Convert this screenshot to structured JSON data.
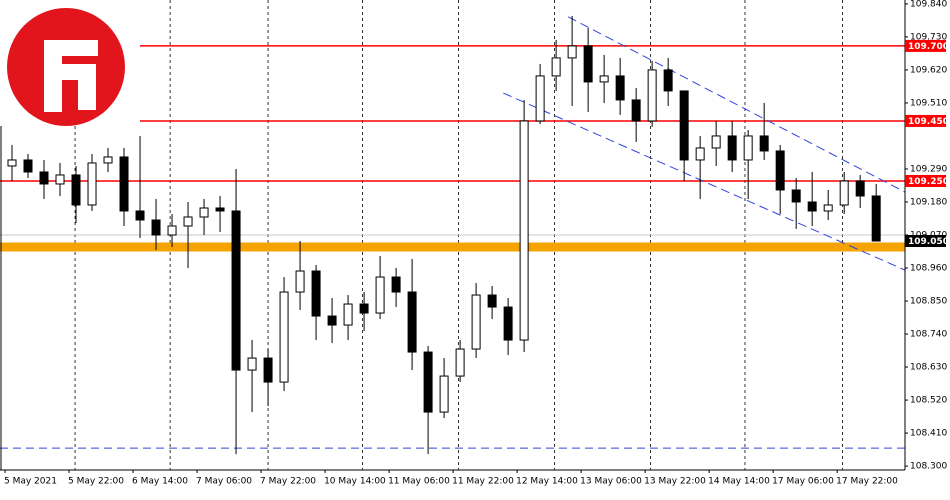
{
  "chart_data": {
    "type": "candlestick",
    "categories": [
      "5 May 2021",
      null,
      null,
      null,
      "5 May 22:00",
      null,
      null,
      null,
      "6 May 14:00",
      null,
      null,
      null,
      "7 May 06:00",
      null,
      null,
      null,
      "7 May 22:00",
      null,
      null,
      null,
      "10 May 14:00",
      null,
      null,
      null,
      "11 May 06:00",
      null,
      null,
      null,
      "11 May 22:00",
      null,
      null,
      null,
      "12 May 14:00",
      null,
      null,
      null,
      "13 May 06:00",
      null,
      null,
      null,
      "13 May 22:00",
      null,
      null,
      null,
      "14 May 14:00",
      null,
      null,
      null,
      "17 May 06:00",
      null,
      null,
      null,
      "17 May 22:00",
      null,
      null
    ],
    "open": [
      109.3,
      109.32,
      109.28,
      109.24,
      109.27,
      109.17,
      109.31,
      109.33,
      109.15,
      109.12,
      109.07,
      109.1,
      109.13,
      109.16,
      109.15,
      108.62,
      108.66,
      108.58,
      108.88,
      108.95,
      108.8,
      108.77,
      108.84,
      108.81,
      108.93,
      108.88,
      108.68,
      108.48,
      108.6,
      108.69,
      108.87,
      108.83,
      108.72,
      109.45,
      109.6,
      109.66,
      109.7,
      109.58,
      109.6,
      109.52,
      109.45,
      109.62,
      109.55,
      109.32,
      109.36,
      109.4,
      109.32,
      109.4,
      109.35,
      109.22,
      109.18,
      109.15,
      109.17,
      109.25,
      109.2
    ],
    "high": [
      109.37,
      109.34,
      109.32,
      109.31,
      109.3,
      109.34,
      109.36,
      109.36,
      109.4,
      109.19,
      109.14,
      109.18,
      109.19,
      109.2,
      109.29,
      108.72,
      108.69,
      108.93,
      109.05,
      108.97,
      108.86,
      108.87,
      108.88,
      109.0,
      108.96,
      108.99,
      108.7,
      108.66,
      108.72,
      108.91,
      108.9,
      108.86,
      109.52,
      109.64,
      109.72,
      109.8,
      109.76,
      109.67,
      109.66,
      109.56,
      109.65,
      109.66,
      109.55,
      109.4,
      109.45,
      109.45,
      109.42,
      109.51,
      109.37,
      109.26,
      109.28,
      109.22,
      109.28,
      109.27,
      109.24
    ],
    "low": [
      109.25,
      109.26,
      109.19,
      109.2,
      109.11,
      109.15,
      109.28,
      109.1,
      109.06,
      109.02,
      109.03,
      108.96,
      109.07,
      109.08,
      108.34,
      108.48,
      108.5,
      108.55,
      108.82,
      108.72,
      108.71,
      108.72,
      108.75,
      108.79,
      108.83,
      108.62,
      108.34,
      108.46,
      108.58,
      108.66,
      108.79,
      108.67,
      108.68,
      109.44,
      109.55,
      109.5,
      109.48,
      109.51,
      109.47,
      109.38,
      109.43,
      109.5,
      109.25,
      109.19,
      109.3,
      109.28,
      109.19,
      109.32,
      109.14,
      109.09,
      109.1,
      109.12,
      109.14,
      109.16,
      109.05
    ],
    "close": [
      109.32,
      109.28,
      109.24,
      109.27,
      109.17,
      109.31,
      109.33,
      109.15,
      109.12,
      109.07,
      109.1,
      109.13,
      109.16,
      109.15,
      108.62,
      108.66,
      108.58,
      108.88,
      108.95,
      108.8,
      108.77,
      108.84,
      108.81,
      108.93,
      108.88,
      108.68,
      108.48,
      108.6,
      108.69,
      108.87,
      108.83,
      108.72,
      109.45,
      109.6,
      109.66,
      109.7,
      109.58,
      109.6,
      109.52,
      109.45,
      109.62,
      109.55,
      109.32,
      109.36,
      109.4,
      109.32,
      109.4,
      109.35,
      109.22,
      109.18,
      109.15,
      109.17,
      109.25,
      109.2,
      109.05
    ],
    "colors": {
      "up": "#ffffff",
      "down": "#000000",
      "wick": "#000000"
    },
    "xlim": [
      0,
      56.3
    ],
    "xgrid": [
      4.44,
      10.38,
      16.5,
      22.4,
      28.4,
      34.4,
      40.4,
      46.3,
      52.4
    ],
    "ylim": [
      108.287,
      109.853
    ],
    "yticks": [
      {
        "value": 109.84,
        "label": "109.840"
      },
      {
        "value": 109.73,
        "label": "109.730"
      },
      {
        "value": 109.62,
        "label": "109.620"
      },
      {
        "value": 109.51,
        "label": "109.510"
      },
      {
        "value": 109.29,
        "label": "109.290"
      },
      {
        "value": 109.18,
        "label": "109.180"
      },
      {
        "value": 109.07,
        "label": "109.070"
      },
      {
        "value": 108.96,
        "label": "108.960"
      },
      {
        "value": 108.85,
        "label": "108.850"
      },
      {
        "value": 108.74,
        "label": "108.740"
      },
      {
        "value": 108.63,
        "label": "108.630"
      },
      {
        "value": 108.52,
        "label": "108.520"
      },
      {
        "value": 108.41,
        "label": "108.410"
      },
      {
        "value": 108.3,
        "label": "108.300"
      }
    ],
    "levels": [
      {
        "value": 109.7,
        "label": "109.700",
        "color": "#ff0000"
      },
      {
        "value": 109.45,
        "label": "109.450",
        "color": "#ff0000"
      },
      {
        "value": 109.25,
        "label": "109.250",
        "color": "#ff0000"
      }
    ],
    "price_label": {
      "value": 109.05,
      "label": "109.050",
      "color": "#000000"
    },
    "bands": [
      {
        "value": 109.03,
        "color": "#f5a300"
      }
    ],
    "hlines": [
      {
        "value": 109.07,
        "color": "#c8c8c8",
        "dashed": false
      },
      {
        "value": 108.36,
        "color": "#3344dd",
        "dashed": true
      }
    ],
    "channels": [
      {
        "x": [
          35.25,
          56.3
        ],
        "y": [
          109.797,
          109.213
        ],
        "color": "#3344dd"
      },
      {
        "x": [
          31.2,
          56.3
        ],
        "y": [
          109.543,
          108.953
        ],
        "color": "#3344dd"
      }
    ]
  }
}
